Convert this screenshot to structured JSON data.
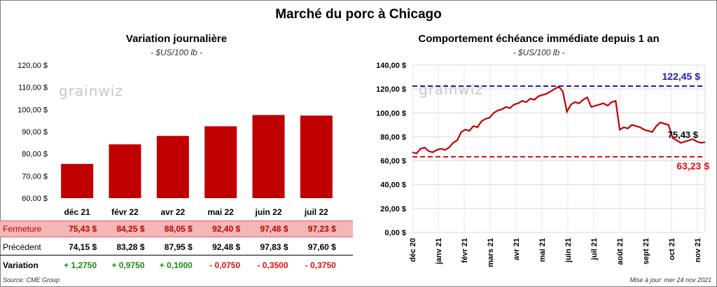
{
  "main_title": "Marché du porc à Chicago",
  "left": {
    "title": "Variation journalière",
    "unit": "- $US/100 lb -",
    "watermark": "grainwiz"
  },
  "right": {
    "title": "Comportement  échéance immédiate depuis 1 an",
    "unit": "- $US/100 lb -",
    "watermark": "grainwiz"
  },
  "table": {
    "fermeture_label": "Fermeture",
    "precedent_label": "Précédent",
    "variation_label": "Variation",
    "fermeture": [
      "75,43  $",
      "84,25  $",
      "88,05  $",
      "92,40  $",
      "97,48  $",
      "97,23  $"
    ],
    "precedent": [
      "74,15  $",
      "83,28  $",
      "87,95  $",
      "92,48  $",
      "97,83  $",
      "97,60  $"
    ],
    "variation": [
      "+ 1,2750",
      "+ 0,9750",
      "+ 0,1000",
      "- 0,0750",
      "- 0,3500",
      "- 0,3750"
    ]
  },
  "source": "Source: CME Group",
  "update": "Mise à jour: mer 24 nov 2021",
  "colors": {
    "bar": "#c00000",
    "line": "#c00000",
    "max_line": "#1f1fa8",
    "min_line": "#e01010",
    "positive": "#1a8a1a",
    "negative": "#e01010"
  },
  "chart_data": [
    {
      "type": "bar",
      "title": "Variation journalière",
      "categories": [
        "déc 21",
        "févr 22",
        "avr 22",
        "mai 22",
        "juin 22",
        "juil 22"
      ],
      "values": [
        75.43,
        84.25,
        88.05,
        92.4,
        97.48,
        97.23
      ],
      "yticks": [
        "60,00 $",
        "70,00 $",
        "80,00 $",
        "90,00 $",
        "100,00 $",
        "110,00 $",
        "120,00 $"
      ],
      "ylim": [
        60,
        120
      ],
      "grid": false
    },
    {
      "type": "line",
      "title": "Comportement  échéance immédiate depuis 1 an",
      "xticks": [
        "déc 20",
        "janv 21",
        "févr 21",
        "mars 21",
        "avr 21",
        "mai 21",
        "juin 21",
        "juil 21",
        "août 21",
        "sept 21",
        "oct 21",
        "nov 21"
      ],
      "yticks": [
        "0,00 $",
        "20,00 $",
        "40,00 $",
        "60,00 $",
        "80,00 $",
        "100,00 $",
        "120,00 $",
        "140,00 $"
      ],
      "ylim": [
        0,
        140
      ],
      "grid": true,
      "series": [
        {
          "values": [
            67,
            66,
            70,
            71,
            68,
            67,
            69,
            70,
            69,
            71,
            75,
            77,
            84,
            86,
            85,
            89,
            88,
            93,
            95,
            96,
            100,
            102,
            103,
            105,
            104,
            107,
            108,
            110,
            109,
            112,
            111,
            114,
            115,
            116,
            118,
            120,
            122,
            118,
            101,
            107,
            109,
            108,
            111,
            113,
            105,
            106,
            107,
            108,
            106,
            109,
            110,
            86,
            88,
            87,
            90,
            89,
            88,
            86,
            85,
            84,
            89,
            92,
            91,
            90,
            79,
            77,
            75,
            76,
            77,
            78,
            76,
            75,
            75.43
          ]
        }
      ],
      "annotations": [
        {
          "label": "122,45 $",
          "value": 122.45,
          "kind": "max"
        },
        {
          "label": "63,23 $",
          "value": 63.23,
          "kind": "min"
        },
        {
          "label": "75,43 $",
          "value": 75.43,
          "kind": "last"
        }
      ]
    }
  ]
}
